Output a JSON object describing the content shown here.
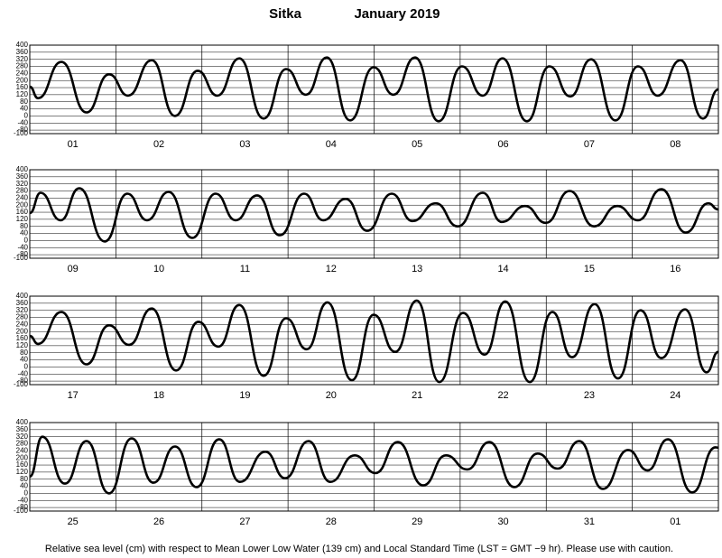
{
  "header": {
    "station": "Sitka",
    "month": "January 2019"
  },
  "note": "Relative sea level (cm) with respect to Mean Lower Low Water (139 cm) and Local Standard Time (LST = GMT −9 hr). Please use with caution.",
  "chart_data": [
    {
      "type": "line",
      "categories": [
        "01",
        "02",
        "03",
        "04",
        "05",
        "06",
        "07",
        "08"
      ],
      "x": [
        0,
        2.3,
        8.8,
        15.8,
        22.1,
        27.4,
        34.0,
        40.5,
        46.8,
        52.3,
        58.4,
        65.2,
        71.5,
        77.0,
        82.8,
        89.3,
        95.9,
        101.4,
        107.4,
        114.0,
        120.5,
        126.3,
        131.8,
        138.6,
        144.9,
        150.7,
        156.5,
        163.3,
        169.6,
        175.1,
        181.4,
        187.7,
        192
      ],
      "values": [
        165,
        100,
        305,
        20,
        235,
        115,
        315,
        0,
        255,
        115,
        325,
        -15,
        265,
        120,
        330,
        -25,
        275,
        120,
        330,
        -30,
        280,
        115,
        325,
        -30,
        280,
        110,
        320,
        -25,
        280,
        115,
        315,
        -15,
        150
      ],
      "xlim": [
        0,
        192
      ],
      "xticks": [
        24,
        48,
        72,
        96,
        120,
        144,
        168
      ],
      "ylim": [
        -100,
        400
      ],
      "yticks": [
        -100,
        -80,
        -40,
        0,
        40,
        80,
        120,
        160,
        200,
        240,
        280,
        320,
        360,
        400
      ],
      "color": "#000000",
      "grid": true
    },
    {
      "type": "line",
      "categories": [
        "09",
        "10",
        "11",
        "12",
        "13",
        "14",
        "15",
        "16"
      ],
      "x": [
        0,
        3.0,
        8.6,
        13.8,
        20.9,
        27.2,
        32.7,
        38.7,
        45.3,
        51.8,
        57.4,
        63.4,
        69.7,
        76.5,
        81.8,
        88.1,
        94.1,
        100.9,
        106.7,
        113.2,
        119.3,
        126.3,
        131.6,
        138.1,
        143.9,
        150.5,
        157.3,
        163.8,
        169.6,
        176.1,
        182.9,
        189.2,
        192
      ],
      "values": [
        155,
        270,
        115,
        295,
        -5,
        265,
        115,
        275,
        15,
        265,
        115,
        255,
        30,
        265,
        115,
        235,
        55,
        265,
        110,
        210,
        80,
        270,
        105,
        195,
        100,
        280,
        80,
        195,
        115,
        290,
        45,
        210,
        175
      ],
      "xlim": [
        0,
        192
      ],
      "xticks": [
        24,
        48,
        72,
        96,
        120,
        144,
        168
      ],
      "ylim": [
        -100,
        400
      ],
      "yticks": [
        -100,
        -80,
        -40,
        0,
        40,
        80,
        120,
        160,
        200,
        240,
        280,
        320,
        360,
        400
      ],
      "color": "#000000",
      "grid": true
    },
    {
      "type": "line",
      "categories": [
        "17",
        "18",
        "19",
        "20",
        "21",
        "22",
        "23",
        "24"
      ],
      "x": [
        0,
        2.3,
        8.8,
        15.8,
        22.1,
        27.7,
        34.0,
        40.8,
        47.0,
        52.6,
        58.4,
        65.2,
        71.5,
        77.2,
        83.0,
        89.8,
        95.9,
        101.9,
        107.9,
        114.2,
        120.8,
        126.8,
        132.6,
        139.4,
        145.7,
        151.2,
        157.5,
        164.0,
        170.3,
        176.1,
        182.7,
        188.7,
        192
      ],
      "values": [
        175,
        130,
        310,
        15,
        235,
        125,
        330,
        -20,
        255,
        115,
        350,
        -50,
        275,
        100,
        365,
        -75,
        295,
        85,
        375,
        -85,
        305,
        70,
        370,
        -85,
        310,
        55,
        355,
        -65,
        320,
        50,
        325,
        -30,
        85
      ],
      "xlim": [
        0,
        192
      ],
      "xticks": [
        24,
        48,
        72,
        96,
        120,
        144,
        168
      ],
      "ylim": [
        -100,
        400
      ],
      "yticks": [
        -100,
        -80,
        -40,
        0,
        40,
        80,
        120,
        160,
        200,
        240,
        280,
        320,
        360,
        400
      ],
      "color": "#000000",
      "grid": true
    },
    {
      "type": "line",
      "categories": [
        "25",
        "26",
        "27",
        "28",
        "29",
        "30",
        "31",
        "01"
      ],
      "x": [
        0,
        3.5,
        9.8,
        15.8,
        22.1,
        28.4,
        34.5,
        40.5,
        46.5,
        52.8,
        58.6,
        65.7,
        71.2,
        77.7,
        83.8,
        90.6,
        96.4,
        102.6,
        109.7,
        116.0,
        122.0,
        128.1,
        135.1,
        141.6,
        147.2,
        153.2,
        159.8,
        166.8,
        172.3,
        177.9,
        184.7,
        191.2,
        192
      ],
      "values": [
        95,
        320,
        55,
        295,
        0,
        310,
        60,
        265,
        35,
        305,
        65,
        235,
        85,
        295,
        65,
        215,
        115,
        290,
        45,
        215,
        135,
        290,
        35,
        225,
        140,
        295,
        25,
        245,
        130,
        305,
        5,
        260,
        258
      ],
      "xlim": [
        0,
        192
      ],
      "xticks": [
        24,
        48,
        72,
        96,
        120,
        144,
        168
      ],
      "ylim": [
        -100,
        400
      ],
      "yticks": [
        -100,
        -80,
        -40,
        0,
        40,
        80,
        120,
        160,
        200,
        240,
        280,
        320,
        360,
        400
      ],
      "color": "#000000",
      "grid": true
    }
  ]
}
